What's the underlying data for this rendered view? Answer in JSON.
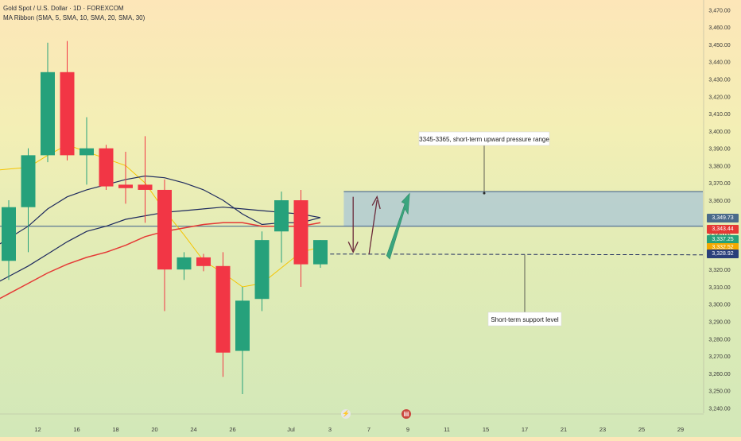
{
  "header": {
    "symbol_title": "Gold Spot / U.S. Dollar · 1D · FOREXCOM",
    "indicator_title": "MA Ribbon (SMA, 5, SMA, 10, SMA, 20, SMA, 30)"
  },
  "annotations": {
    "resistance_label": "3345-3365, short-term upward pressure range",
    "support_label": "Short-term support level"
  },
  "price_tags": [
    {
      "value": "3,349.73",
      "color": "#4a6b8a"
    },
    {
      "value": "3,343.44",
      "color": "#e53935"
    },
    {
      "value": "3,337.25",
      "color": "#26a17b"
    },
    {
      "value": "3,332.52",
      "color": "#f2a900"
    },
    {
      "value": "3,328.92",
      "color": "#2a3f7a"
    }
  ],
  "event_badges": [
    {
      "icon": "lightning-icon",
      "glyph": "⚡",
      "color": "#e6e6e6"
    },
    {
      "icon": "us-flag-icon",
      "glyph": "▤",
      "color": "#c9473e"
    }
  ],
  "colors": {
    "up": "#26a17b",
    "down": "#f23645",
    "sma5": "#f5c400",
    "sma10": "#e53935",
    "sma20": "#1e2a5e",
    "sma30": "#1e2a5e",
    "zone_fill": "#aac6d6",
    "zone_border": "#3a5a8a"
  },
  "chart_data": {
    "type": "candlestick",
    "title": "Gold Spot / U.S. Dollar · 1D · FOREXCOM",
    "y_ticks": [
      3240,
      3250,
      3260,
      3270,
      3280,
      3290,
      3300,
      3310,
      3320,
      3330,
      3340,
      3350,
      3360,
      3370,
      3380,
      3390,
      3400,
      3410,
      3420,
      3430,
      3440,
      3450,
      3460,
      3470
    ],
    "y_tick_labels": [
      "3,240.00",
      "3,250.00",
      "3,260.00",
      "3,270.00",
      "3,280.00",
      "3,290.00",
      "3,300.00",
      "3,310.00",
      "3,320.00",
      "3,330.00",
      "3,340.00",
      "3,350.00",
      "3,360.00",
      "3,370.00",
      "3,380.00",
      "3,390.00",
      "3,400.00",
      "3,410.00",
      "3,420.00",
      "3,430.00",
      "3,440.00",
      "3,450.00",
      "3,460.00",
      "3,470.00"
    ],
    "ylim": [
      3237,
      3472
    ],
    "x_tick_labels": [
      {
        "slot": 1,
        "label": "12"
      },
      {
        "slot": 3,
        "label": "16"
      },
      {
        "slot": 5,
        "label": "18"
      },
      {
        "slot": 7,
        "label": "20"
      },
      {
        "slot": 9,
        "label": "24"
      },
      {
        "slot": 11,
        "label": "26"
      },
      {
        "slot": 14,
        "label": "Jul"
      },
      {
        "slot": 16,
        "label": "3"
      },
      {
        "slot": 18,
        "label": "7"
      },
      {
        "slot": 20,
        "label": "9"
      },
      {
        "slot": 22,
        "label": "11"
      },
      {
        "slot": 24,
        "label": "15"
      },
      {
        "slot": 26,
        "label": "17"
      },
      {
        "slot": 28,
        "label": "21"
      },
      {
        "slot": 30,
        "label": "23"
      },
      {
        "slot": 32,
        "label": "25"
      },
      {
        "slot": 34,
        "label": "29"
      }
    ],
    "candles": [
      {
        "o": 3325,
        "h": 3360,
        "l": 3314,
        "c": 3356
      },
      {
        "o": 3356,
        "h": 3390,
        "l": 3330,
        "c": 3386
      },
      {
        "o": 3386,
        "h": 3451,
        "l": 3382,
        "c": 3434
      },
      {
        "o": 3434,
        "h": 3452,
        "l": 3383,
        "c": 3386
      },
      {
        "o": 3386,
        "h": 3408,
        "l": 3369,
        "c": 3390
      },
      {
        "o": 3390,
        "h": 3392,
        "l": 3366,
        "c": 3368
      },
      {
        "o": 3369,
        "h": 3388,
        "l": 3358,
        "c": 3367
      },
      {
        "o": 3369,
        "h": 3397,
        "l": 3347,
        "c": 3366
      },
      {
        "o": 3366,
        "h": 3372,
        "l": 3296,
        "c": 3320
      },
      {
        "o": 3320,
        "h": 3330,
        "l": 3314,
        "c": 3327
      },
      {
        "o": 3327,
        "h": 3329,
        "l": 3319,
        "c": 3322
      },
      {
        "o": 3322,
        "h": 3330,
        "l": 3258,
        "c": 3272
      },
      {
        "o": 3273,
        "h": 3310,
        "l": 3248,
        "c": 3302
      },
      {
        "o": 3303,
        "h": 3342,
        "l": 3296,
        "c": 3337
      },
      {
        "o": 3342,
        "h": 3365,
        "l": 3324,
        "c": 3360
      },
      {
        "o": 3360,
        "h": 3366,
        "l": 3310,
        "c": 3323
      },
      {
        "o": 3323,
        "h": 3337,
        "l": 3321,
        "c": 3337
      }
    ],
    "series": [
      {
        "name": "SMA 5",
        "values": [
          3378,
          3379,
          3386,
          3392,
          3388,
          3384,
          3380,
          3370,
          3354,
          3340,
          3325,
          3318,
          3310,
          3312,
          3321,
          3330,
          3333
        ]
      },
      {
        "name": "SMA 10",
        "values": [
          3306,
          3312,
          3318,
          3323,
          3327,
          3330,
          3334,
          3339,
          3342,
          3344,
          3346,
          3347,
          3347,
          3345,
          3345,
          3345,
          3347
        ]
      },
      {
        "name": "SMA 20",
        "values": [
          3338,
          3345,
          3355,
          3362,
          3366,
          3369,
          3372,
          3374,
          3373,
          3370,
          3366,
          3360,
          3352,
          3346,
          3347,
          3347,
          3350
        ]
      },
      {
        "name": "SMA 30",
        "values": [
          3316,
          3322,
          3329,
          3336,
          3342,
          3345,
          3349,
          3351,
          3353,
          3354,
          3355,
          3356,
          3355,
          3354,
          3353,
          3352,
          3350
        ]
      }
    ],
    "zone": {
      "low": 3345,
      "high": 3365,
      "label": "3345-3365, short-term upward pressure range"
    },
    "support": {
      "value": 3328.92,
      "label": "Short-term support level"
    },
    "legend": "top-left",
    "grid": false
  }
}
